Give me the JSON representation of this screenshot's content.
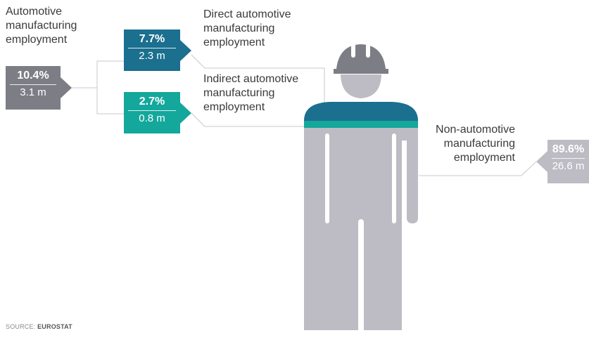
{
  "chart_data": {
    "type": "pie",
    "title": "",
    "colors": {
      "auto_total": "#7d7d86",
      "direct": "#1b6f8f",
      "indirect": "#14a79c",
      "non_auto": "#bdbcc4"
    },
    "segments": [
      {
        "label": "Automotive manufacturing employment",
        "lines": [
          "Automotive",
          "manufacturing",
          "employment"
        ],
        "percent": 10.4,
        "pct_text": "10.4%",
        "abs_text": "3.1 m"
      },
      {
        "label": "Direct automotive manufacturing employment",
        "lines": [
          "Direct automotive",
          "manufacturing",
          "employment"
        ],
        "percent": 7.7,
        "pct_text": "7.7%",
        "abs_text": "2.3 m"
      },
      {
        "label": "Indirect automotive manufacturing employment",
        "lines": [
          "Indirect automotive",
          "manufacturing",
          "employment"
        ],
        "percent": 2.7,
        "pct_text": "2.7%",
        "abs_text": "0.8 m"
      },
      {
        "label": "Non-automotive manufacturing employment",
        "lines": [
          "Non-automotive",
          "manufacturing",
          "employment"
        ],
        "percent": 89.6,
        "pct_text": "89.6%",
        "abs_text": "26.6 m"
      }
    ]
  },
  "source": {
    "prefix": "SOURCE: ",
    "name": "EUROSTAT"
  }
}
